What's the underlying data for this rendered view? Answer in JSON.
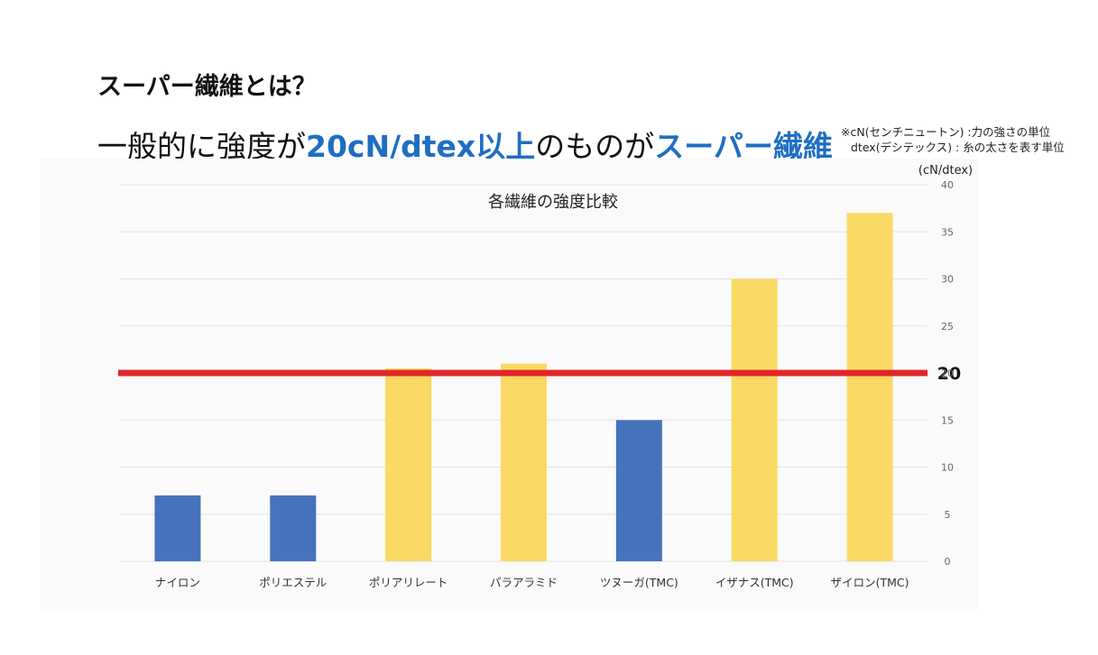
{
  "slide": {
    "title": "スーパー繊維とは？",
    "headline_pre": "一般的に強度が",
    "headline_hl1": "20cN/dtex以上",
    "headline_mid": "のものが",
    "headline_hl2": "スーパー繊維"
  },
  "notes": {
    "line1": "※cN(センチニュートン)  :力の強さの単位",
    "line2": "dtex(デシテックス)    : 糸の太さを表す単位"
  },
  "colors": {
    "blue": "#4672bb",
    "yellow": "#fad964",
    "threshold": "#e0262a",
    "accent": "#1f6ec3"
  },
  "chart_data": {
    "type": "bar",
    "title": "各繊維の強度比較",
    "unit_label": "(cN/dtex)",
    "categories": [
      "ナイロン",
      "ポリエステル",
      "ポリアリレート",
      "パラアラミド",
      "ツヌーガ(TMC)",
      "イザナス(TMC)",
      "ザイロン(TMC)"
    ],
    "values": [
      7,
      7,
      20.5,
      21,
      15,
      30,
      37
    ],
    "bar_colors": [
      "blue",
      "blue",
      "yellow",
      "yellow",
      "blue",
      "yellow",
      "yellow"
    ],
    "ylim": [
      0,
      40
    ],
    "yticks": [
      0,
      5,
      10,
      15,
      20,
      25,
      30,
      35,
      40
    ],
    "y_axis_side": "right",
    "grid": true,
    "threshold": {
      "value": 20,
      "label": "20"
    }
  }
}
